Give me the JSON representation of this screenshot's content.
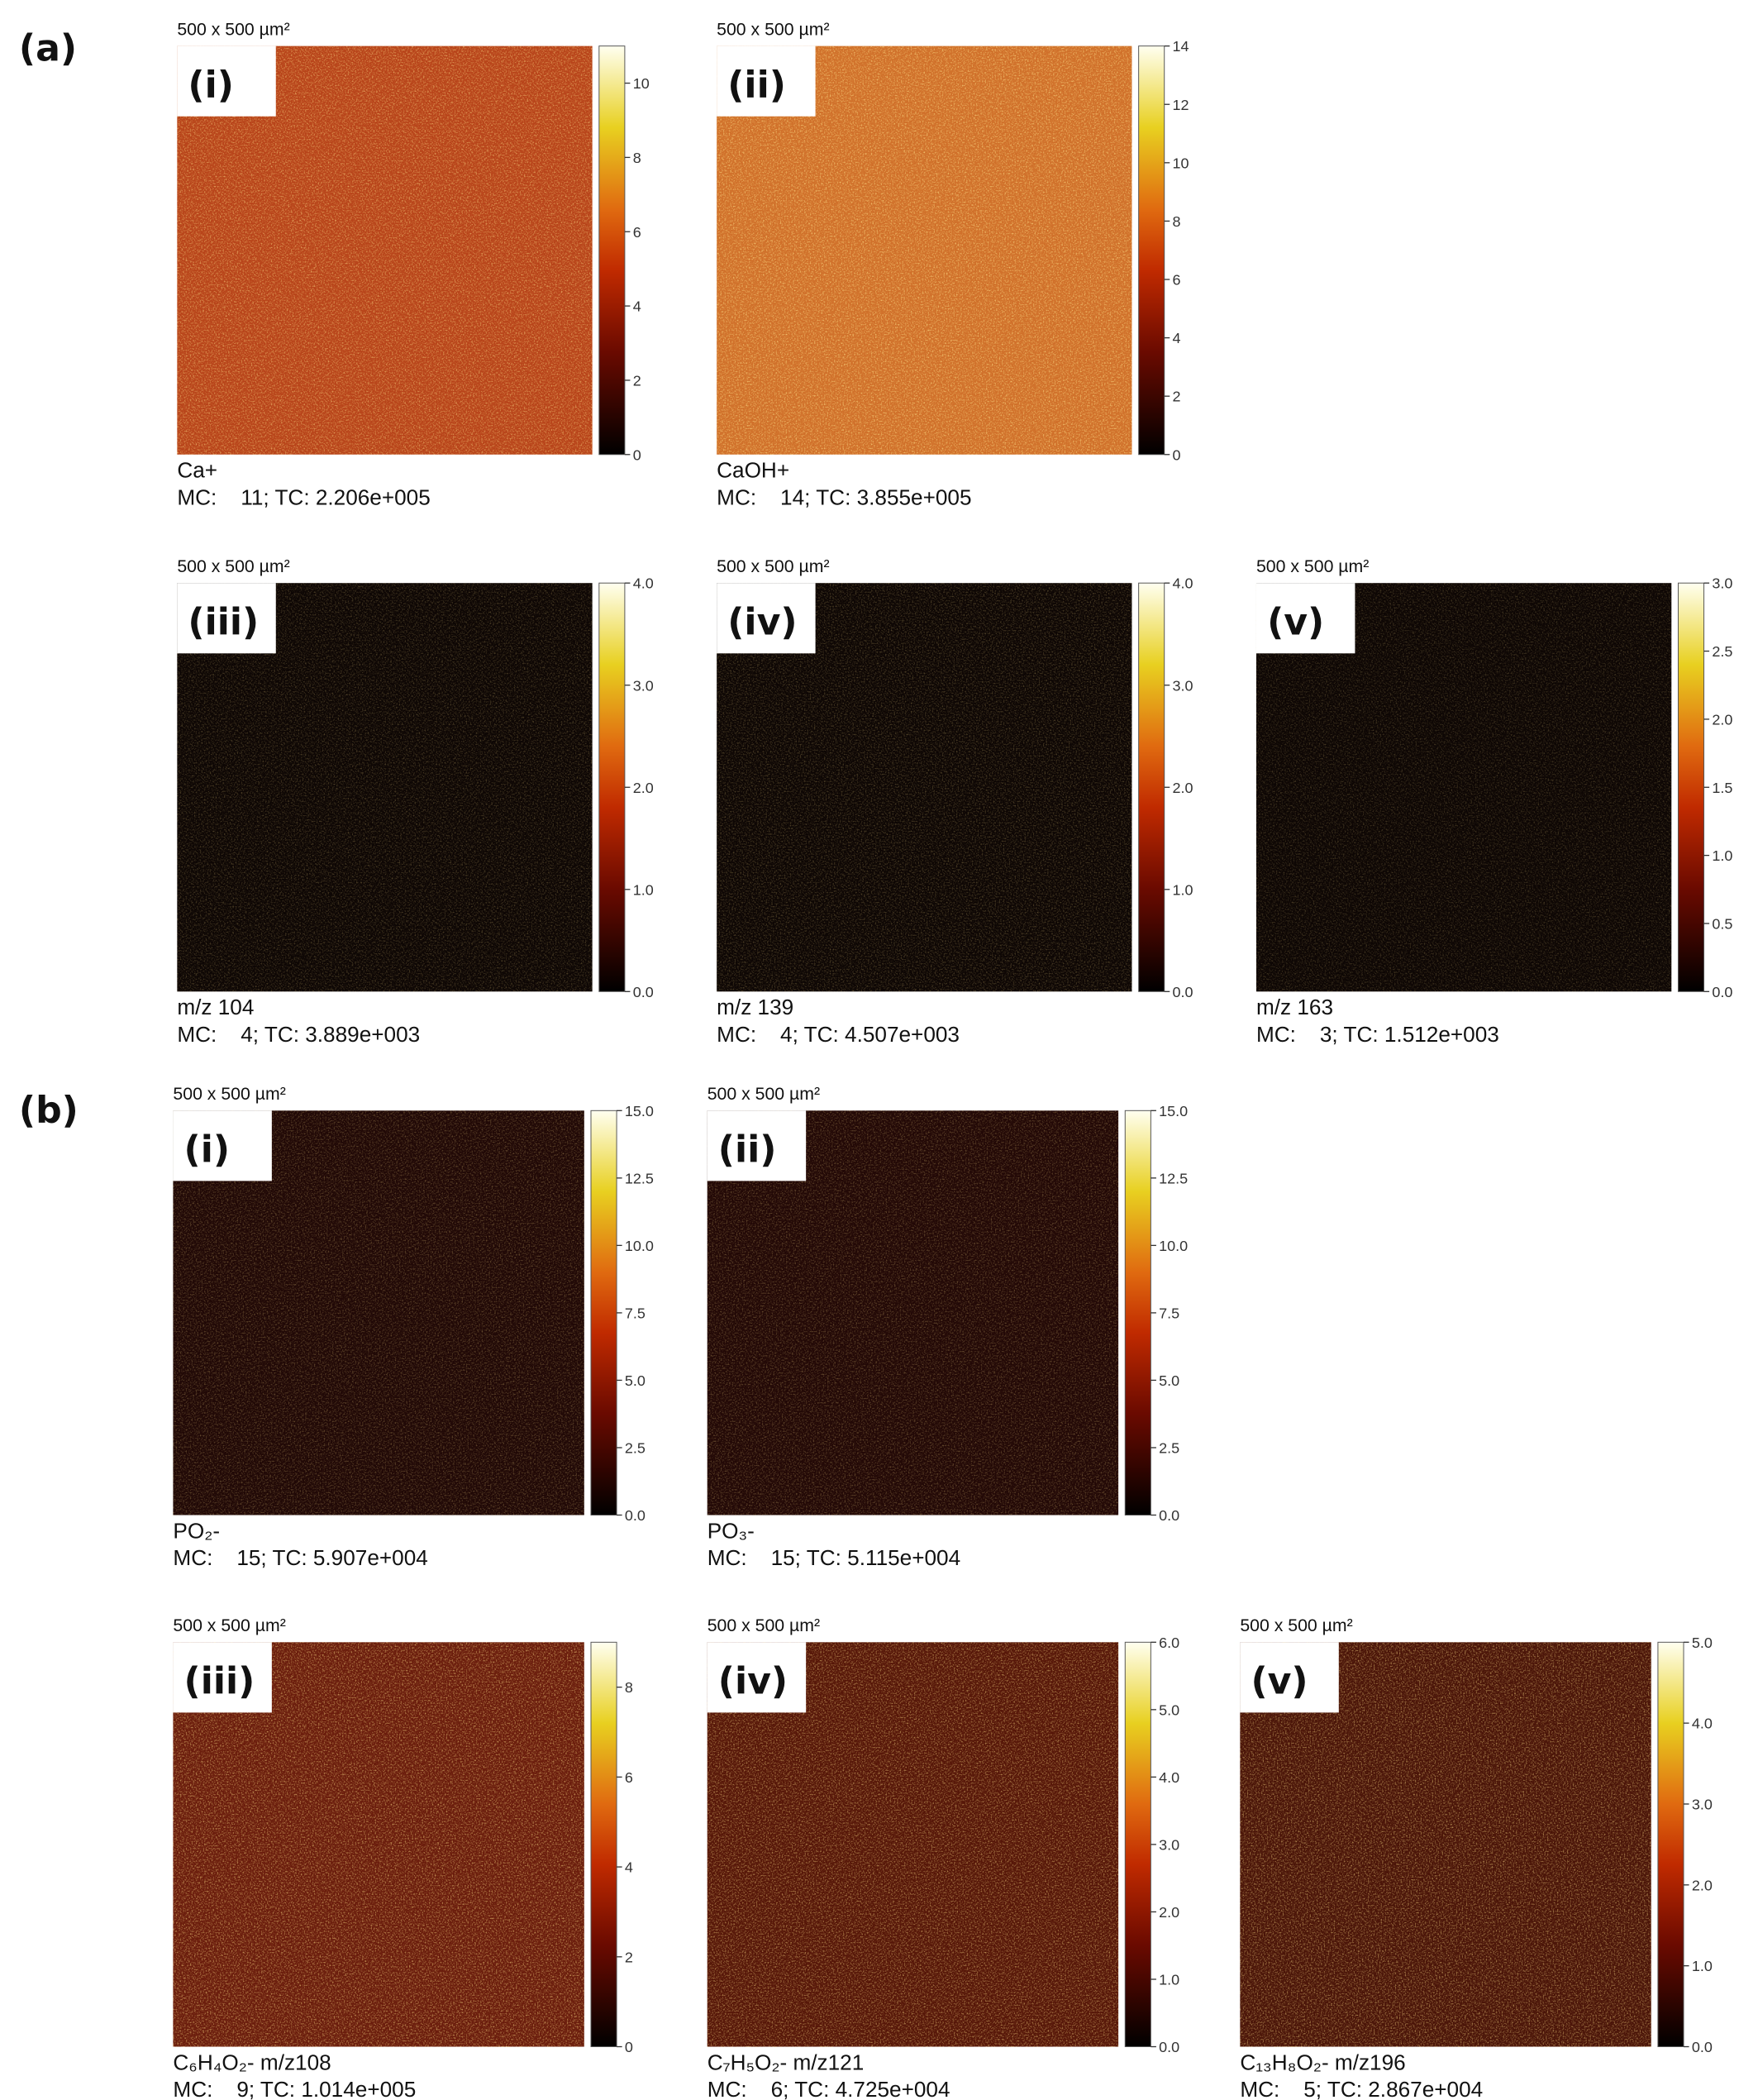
{
  "sections": [
    {
      "label": "(a)",
      "rows": [
        [
          {
            "label": "(i)",
            "scale": "500 x 500 µm²",
            "clim": [
              0,
              11
            ],
            "ticks": [
              0,
              2,
              4,
              6,
              8,
              10
            ],
            "name": "Ca+",
            "stats_label": "MC:",
            "stats": "11; TC: 2.206e+005"
          },
          {
            "label": "(ii)",
            "scale": "500 x 500 µm²",
            "clim": [
              0,
              14
            ],
            "ticks": [
              0,
              2,
              4,
              6,
              8,
              10,
              12,
              14
            ],
            "name": "CaOH+",
            "stats_label": "MC:",
            "stats": "14; TC: 3.855e+005"
          }
        ],
        [
          {
            "label": "(iii)",
            "scale": "500 x 500 µm²",
            "clim": [
              0,
              4
            ],
            "ticks": [
              {
                "value": 0,
                "label": "0.0"
              },
              {
                "value": 1,
                "label": "1.0"
              },
              {
                "value": 2,
                "label": "2.0"
              },
              {
                "value": 3,
                "label": "3.0"
              },
              {
                "value": 4,
                "label": "4.0"
              }
            ],
            "name": "m/z 104",
            "stats_label": "MC:",
            "stats": "4; TC: 3.889e+003"
          },
          {
            "label": "(iv)",
            "scale": "500 x 500 µm²",
            "clim": [
              0,
              4
            ],
            "ticks": [
              {
                "value": 0,
                "label": "0.0"
              },
              {
                "value": 1,
                "label": "1.0"
              },
              {
                "value": 2,
                "label": "2.0"
              },
              {
                "value": 3,
                "label": "3.0"
              },
              {
                "value": 4,
                "label": "4.0"
              }
            ],
            "name": "m/z 139",
            "stats_label": "MC:",
            "stats": "4; TC: 4.507e+003"
          },
          {
            "label": "(v)",
            "scale": "500 x 500 µm²",
            "clim": [
              0,
              3
            ],
            "ticks": [
              {
                "value": 0,
                "label": "0.0"
              },
              0.5,
              {
                "value": 1,
                "label": "1.0"
              },
              1.5,
              {
                "value": 2,
                "label": "2.0"
              },
              2.5,
              {
                "value": 3,
                "label": "3.0"
              }
            ],
            "name": "m/z 163",
            "stats_label": "MC:",
            "stats": "3; TC: 1.512e+003"
          }
        ]
      ]
    },
    {
      "label": "(b)",
      "rows": [
        [
          {
            "label": "(i)",
            "scale": "500 x 500 µm²",
            "clim": [
              0,
              15
            ],
            "ticks": [
              {
                "value": 0,
                "label": "0.0"
              },
              2.5,
              {
                "value": 5,
                "label": "5.0"
              },
              7.5,
              {
                "value": 10,
                "label": "10.0"
              },
              12.5,
              {
                "value": 15,
                "label": "15.0"
              }
            ],
            "name": "PO₂-",
            "stats_label": "MC:",
            "stats": "15; TC: 5.907e+004"
          },
          {
            "label": "(ii)",
            "scale": "500 x 500 µm²",
            "clim": [
              0,
              15
            ],
            "ticks": [
              {
                "value": 0,
                "label": "0.0"
              },
              2.5,
              {
                "value": 5,
                "label": "5.0"
              },
              7.5,
              {
                "value": 10,
                "label": "10.0"
              },
              12.5,
              {
                "value": 15,
                "label": "15.0"
              }
            ],
            "name": "PO₃-",
            "stats_label": "MC:",
            "stats": "15; TC: 5.115e+004"
          }
        ],
        [
          {
            "label": "(iii)",
            "scale": "500 x 500 µm²",
            "clim": [
              0,
              9
            ],
            "ticks": [
              0,
              2,
              4,
              6,
              8
            ],
            "name": "C₆H₄O₂-  m/z108",
            "stats_label": "MC:",
            "stats": "9; TC: 1.014e+005"
          },
          {
            "label": "(iv)",
            "scale": "500 x 500 µm²",
            "clim": [
              0,
              6
            ],
            "ticks": [
              {
                "value": 0,
                "label": "0.0"
              },
              {
                "value": 1,
                "label": "1.0"
              },
              {
                "value": 2,
                "label": "2.0"
              },
              {
                "value": 3,
                "label": "3.0"
              },
              {
                "value": 4,
                "label": "4.0"
              },
              {
                "value": 5,
                "label": "5.0"
              },
              {
                "value": 6,
                "label": "6.0"
              }
            ],
            "name": "C₇H₅O₂- m/z121",
            "stats_label": "MC:",
            "stats": "6; TC: 4.725e+004"
          },
          {
            "label": "(v)",
            "scale": "500 x 500 µm²",
            "clim": [
              0,
              5
            ],
            "ticks": [
              {
                "value": 0,
                "label": "0.0"
              },
              {
                "value": 1,
                "label": "1.0"
              },
              {
                "value": 2,
                "label": "2.0"
              },
              {
                "value": 3,
                "label": "3.0"
              },
              {
                "value": 4,
                "label": "4.0"
              },
              {
                "value": 5,
                "label": "5.0"
              }
            ],
            "name": "C₁₃H₈O₂-  m/z196",
            "stats_label": "MC:",
            "stats": "5; TC: 2.867e+004"
          }
        ]
      ]
    }
  ]
}
